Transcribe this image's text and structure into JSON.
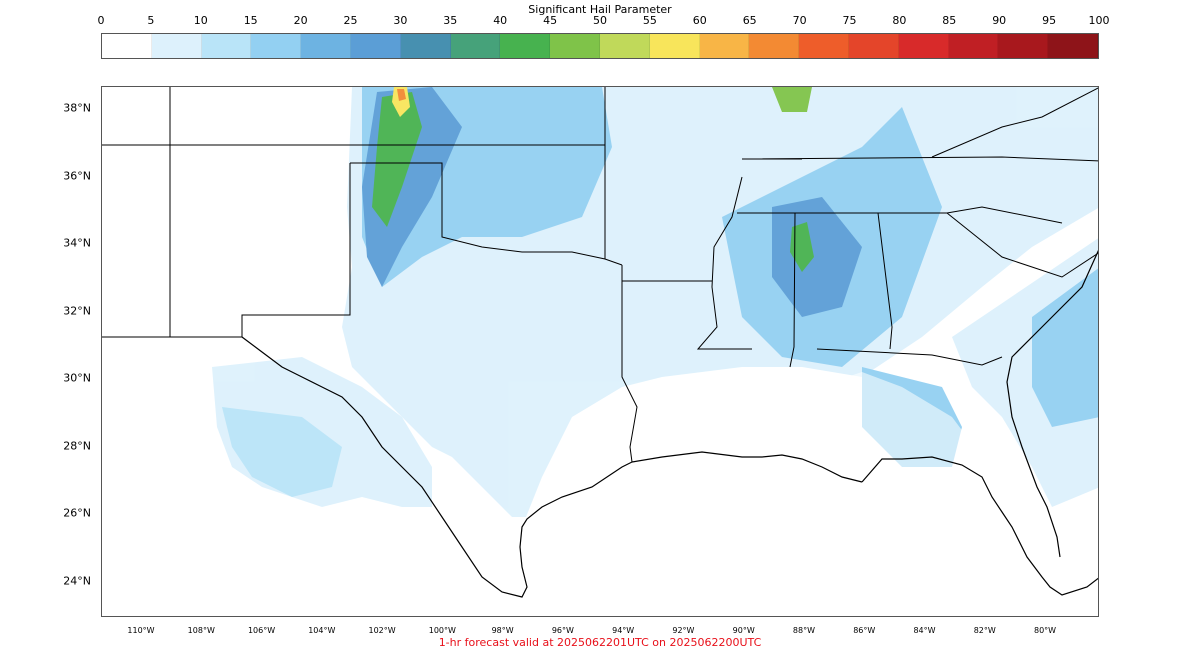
{
  "colorbar": {
    "title": "Significant Hail Parameter",
    "ticks": [
      "0",
      "5",
      "10",
      "15",
      "20",
      "25",
      "30",
      "35",
      "40",
      "45",
      "50",
      "55",
      "60",
      "65",
      "70",
      "75",
      "80",
      "85",
      "90",
      "95",
      "100"
    ],
    "colors": [
      "#ffffff",
      "#ddf1fc",
      "#b9e4f8",
      "#93d0f2",
      "#6db3e2",
      "#5b9ed6",
      "#4790b0",
      "#46a27a",
      "#47b24f",
      "#7fc349",
      "#c0d95a",
      "#f8e55b",
      "#f8b546",
      "#f38a33",
      "#ee5d2a",
      "#e4452a",
      "#d82a2a",
      "#c01f24",
      "#a8181d",
      "#8e1419"
    ]
  },
  "map": {
    "lat_labels": [
      "38°N",
      "36°N",
      "34°N",
      "32°N",
      "30°N",
      "28°N",
      "26°N",
      "24°N"
    ],
    "lon_labels": [
      "110°W",
      "108°W",
      "106°W",
      "104°W",
      "102°W",
      "100°W",
      "98°W",
      "96°W",
      "94°W",
      "92°W",
      "90°W",
      "88°W",
      "86°W",
      "84°W",
      "82°W",
      "80°W"
    ]
  },
  "footer": "1-hr forecast valid at 2025062201UTC on 2025062200UTC"
}
